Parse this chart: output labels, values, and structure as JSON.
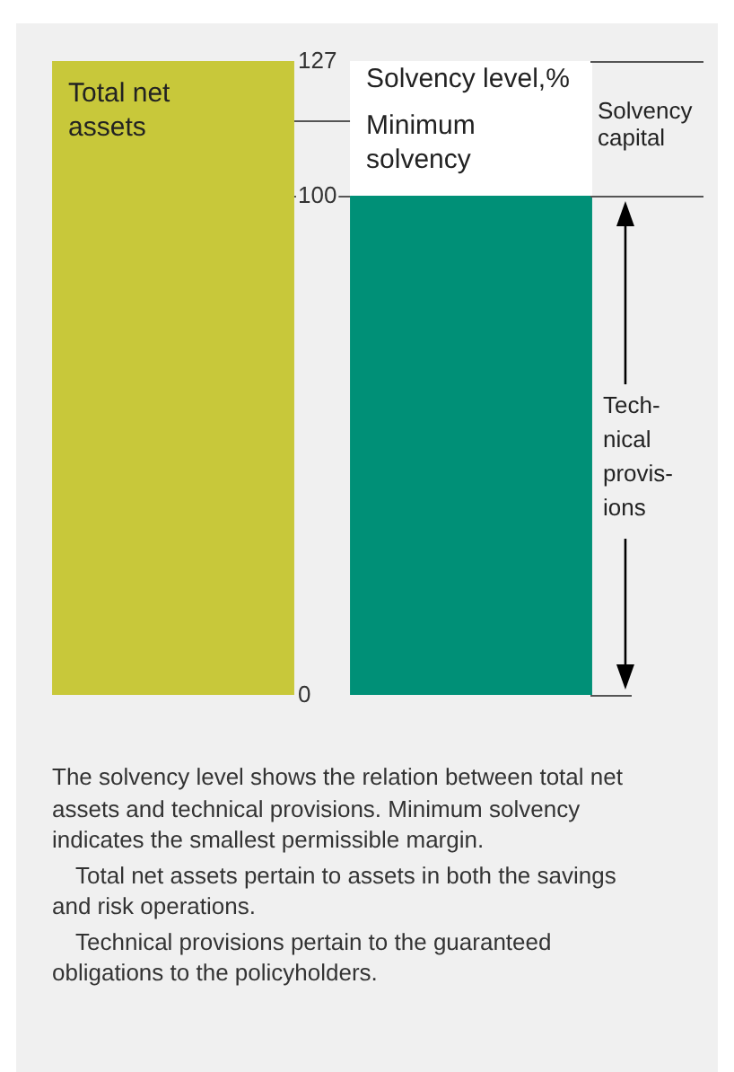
{
  "chart_data": {
    "type": "bar",
    "categories": [
      null,
      null
    ],
    "stacked": true,
    "series": [
      {
        "name": "Total net assets",
        "color": "#c8c83a",
        "values": [
          127,
          null
        ]
      },
      {
        "color": "#009077",
        "values": [
          null,
          100
        ]
      },
      {
        "color": "#ffffff",
        "values": [
          null,
          27
        ]
      }
    ],
    "ylim": [
      0,
      127
    ],
    "yticks": [
      0,
      100,
      127
    ],
    "ref_lines": [
      {
        "axis": "y",
        "value": 115,
        "color": "#555555"
      }
    ],
    "annotations": [
      "Solvency level,%",
      "Minimum solvency",
      "Solvency capital",
      "Tech-nical provis-ions",
      "The solvency level shows the relation between total net assets and technical provisions. Minimum solvency indicates the smallest permissible margin.",
      "Total net assets pertain to assets in both the savings and risk operations.",
      "Technical provisions pertain to the guaranteed obligations to the policyholders."
    ]
  }
}
